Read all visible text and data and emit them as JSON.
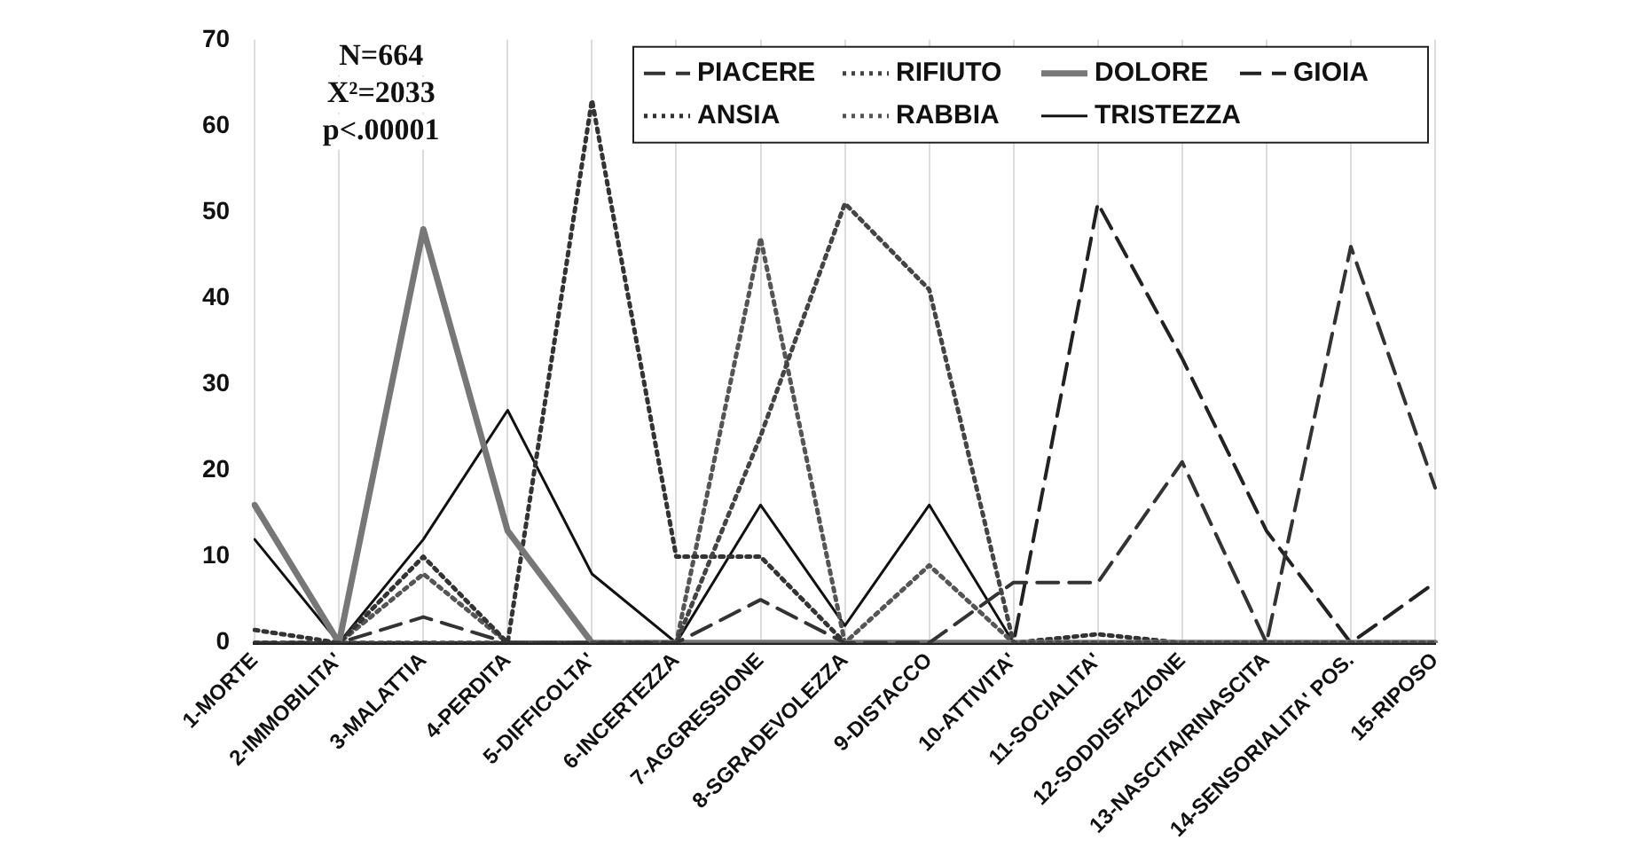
{
  "chart_data": {
    "type": "line",
    "categories": [
      "1-MORTE",
      "2-IMMOBILITA'",
      "3-MALATTIA",
      "4-PERDITA",
      "5-DIFFICOLTA'",
      "6-INCERTEZZA",
      "7-AGGRESSIONE",
      "8-SGRADEVOLEZZA",
      "9-DISTACCO",
      "10-ATTIVITA'",
      "11-SOCIALITA'",
      "12-SODDISFAZIONE",
      "13-NASCITA/RINASCITA",
      "14-SENSORIALITA' POS.",
      "15-RIPOSO"
    ],
    "series": [
      {
        "name": "PIACERE",
        "color": "#333333",
        "line_style": "dashed",
        "values": [
          0,
          0,
          3,
          0,
          0,
          0,
          5,
          0,
          0,
          7,
          7,
          21,
          0,
          46,
          18
        ]
      },
      {
        "name": "RIFIUTO",
        "color": "#444444",
        "line_style": "dotted",
        "values": [
          0,
          0,
          0,
          0,
          0,
          0,
          24,
          51,
          41,
          0,
          0,
          0,
          0,
          0,
          0
        ]
      },
      {
        "name": "DOLORE",
        "color": "#777777",
        "line_style": "solid",
        "values": [
          16,
          0,
          48,
          13,
          0,
          0,
          0,
          0,
          0,
          0,
          0,
          0,
          0,
          0,
          0
        ]
      },
      {
        "name": "GIOIA",
        "color": "#222222",
        "line_style": "dashed",
        "values": [
          0,
          0,
          0,
          0,
          0,
          0,
          0,
          0,
          0,
          0,
          51,
          33,
          13,
          0,
          7
        ]
      },
      {
        "name": "ANSIA",
        "color": "#333333",
        "line_style": "dotted",
        "values": [
          1.5,
          0,
          10,
          0,
          63,
          10,
          10,
          0,
          0,
          0,
          1,
          0,
          0,
          0,
          0
        ]
      },
      {
        "name": "RABBIA",
        "color": "#555555",
        "line_style": "dotted",
        "values": [
          0,
          0,
          8,
          0,
          0,
          0,
          47,
          0,
          9,
          0,
          0,
          0,
          0,
          0,
          0
        ]
      },
      {
        "name": "TRISTEZZA",
        "color": "#111111",
        "line_style": "solid",
        "values": [
          12,
          0,
          12,
          27,
          8,
          0,
          16,
          2,
          16,
          0,
          0,
          0,
          0,
          0,
          0
        ]
      }
    ],
    "ylim": [
      0,
      70
    ],
    "yticks": [
      0,
      10,
      20,
      30,
      40,
      50,
      60,
      70
    ],
    "grid": "x",
    "legend": "top right",
    "annotations": [
      "N=664",
      "X²=2033",
      "p<.00001"
    ]
  }
}
